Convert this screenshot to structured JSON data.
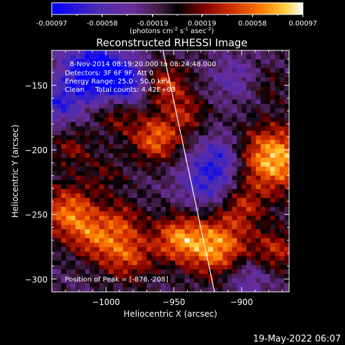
{
  "colorbar": {
    "ticks": [
      "-0.00097",
      "-0.00058",
      "-0.00019",
      "0.00019",
      "0.00058",
      "0.00097"
    ],
    "units_main": "(photons cm",
    "units_exp1": "-2",
    "units_mid": " s",
    "units_exp2": "-1",
    "units_tail": " asec",
    "units_exp3": "-2",
    "units_close": ")"
  },
  "annotations": {
    "line1": "8-Nov-2014 08:19:20.000 to 08:24:48.000",
    "line2": "Detectors: 3F 6F 9F, Att 0",
    "line3": "Energy Range: 25.0 - 50.0 keV",
    "line4": "Clean     Total counts: 4.42E+03",
    "peak": "Position of Peak = [-876,-208]"
  },
  "footer": {
    "timestamp": "19-May-2022 06:07"
  },
  "colors": {
    "background": "#000000",
    "colormap": [
      "#0000ff",
      "#4b2cb5",
      "#6a2d9a",
      "#3a1a3a",
      "#000000",
      "#7a0000",
      "#d43000",
      "#ff8000",
      "#ffd040",
      "#ffffff"
    ]
  },
  "chart_data": {
    "type": "heatmap",
    "title": "Reconstructed RHESSI Image",
    "xlabel": "Heliocentric X (arcsec)",
    "ylabel": "Heliocentric Y (arcsec)",
    "xlim": [
      -1040,
      -865
    ],
    "ylim": [
      -310,
      -123
    ],
    "xticks": [
      -1000,
      -950,
      -900
    ],
    "xtick_labels": [
      "−1000",
      "−950",
      "−900"
    ],
    "yticks": [
      -150,
      -200,
      -250,
      -300
    ],
    "ytick_labels": [
      "−150",
      "−200",
      "−250",
      "−300"
    ],
    "zlim": [
      -0.00097,
      0.00097
    ],
    "peak": [
      -876,
      -208
    ],
    "limb_line": [
      [
        -958,
        -123
      ],
      [
        -920,
        -310
      ]
    ],
    "sources": [
      {
        "x": -963,
        "y": -192,
        "amp": 0.00072,
        "r": 13
      },
      {
        "x": -876,
        "y": -208,
        "amp": 0.00097,
        "r": 18
      },
      {
        "x": -1027,
        "y": -250,
        "amp": 0.00075,
        "r": 15
      },
      {
        "x": -1008,
        "y": -270,
        "amp": 0.0005,
        "r": 12
      },
      {
        "x": -988,
        "y": -255,
        "amp": 0.0004,
        "r": 11
      },
      {
        "x": -985,
        "y": -283,
        "amp": 0.00062,
        "r": 14
      },
      {
        "x": -947,
        "y": -270,
        "amp": 0.0007,
        "r": 13
      },
      {
        "x": -918,
        "y": -277,
        "amp": 0.00085,
        "r": 16
      },
      {
        "x": -900,
        "y": -245,
        "amp": 0.00045,
        "r": 12
      },
      {
        "x": -957,
        "y": -150,
        "amp": 0.0006,
        "r": 12
      },
      {
        "x": -940,
        "y": -172,
        "amp": 0.0004,
        "r": 10
      },
      {
        "x": -992,
        "y": -172,
        "amp": 0.00045,
        "r": 11
      },
      {
        "x": -1025,
        "y": -200,
        "amp": 0.00035,
        "r": 11
      },
      {
        "x": -875,
        "y": -280,
        "amp": 0.0005,
        "r": 12
      },
      {
        "x": -880,
        "y": -150,
        "amp": 0.00022,
        "r": 10
      },
      {
        "x": -1000,
        "y": -220,
        "amp": 0.00025,
        "r": 10
      },
      {
        "x": -1010,
        "y": -140,
        "amp": -0.0009,
        "r": 16
      },
      {
        "x": -985,
        "y": -150,
        "amp": -0.00065,
        "r": 13
      },
      {
        "x": -1035,
        "y": -165,
        "amp": -0.0005,
        "r": 11
      },
      {
        "x": -925,
        "y": -225,
        "amp": -0.00055,
        "r": 15
      },
      {
        "x": -915,
        "y": -205,
        "amp": -0.0004,
        "r": 11
      },
      {
        "x": -895,
        "y": -300,
        "amp": -0.00035,
        "r": 12
      },
      {
        "x": -905,
        "y": -145,
        "amp": -0.0003,
        "r": 12
      }
    ]
  }
}
